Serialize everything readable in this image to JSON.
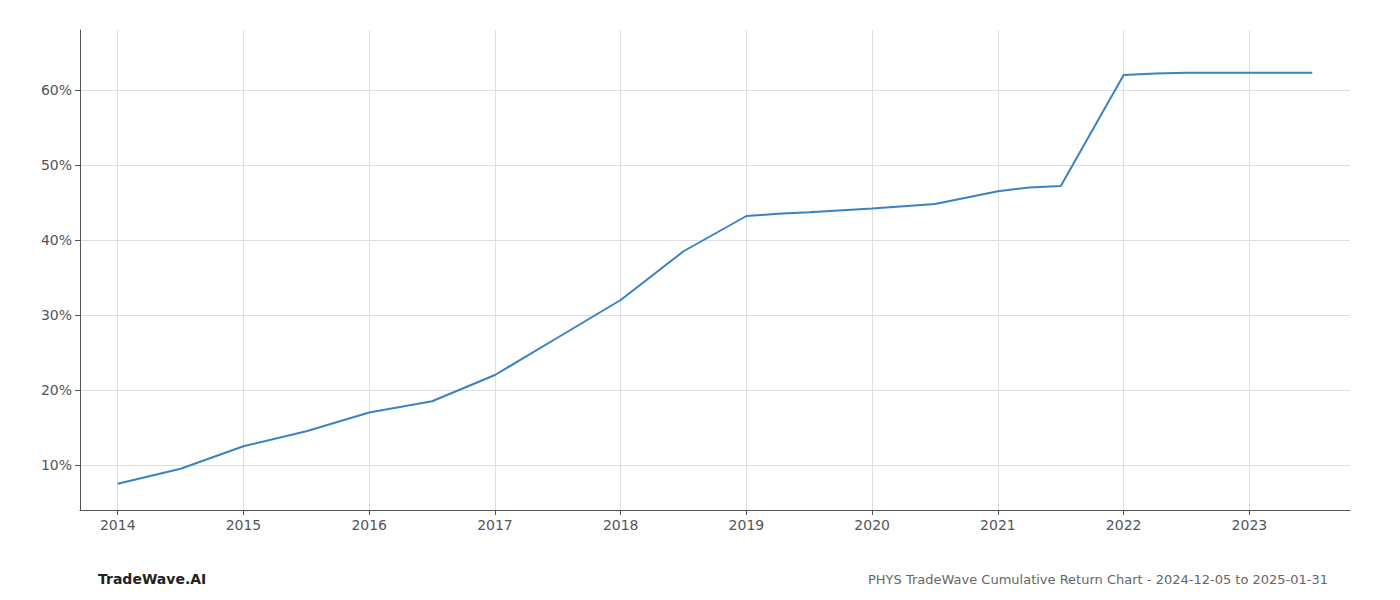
{
  "chart_data": {
    "type": "line",
    "x": [
      2014,
      2014.5,
      2015,
      2015.5,
      2016,
      2016.5,
      2017,
      2017.5,
      2018,
      2018.5,
      2019,
      2019.25,
      2019.5,
      2020,
      2020.5,
      2021,
      2021.25,
      2021.5,
      2022,
      2022.25,
      2022.5,
      2023,
      2023.5
    ],
    "values": [
      7.5,
      9.5,
      12.5,
      14.5,
      17.0,
      18.5,
      22.0,
      27.0,
      32.0,
      38.5,
      43.2,
      43.5,
      43.7,
      44.2,
      44.8,
      46.5,
      47.0,
      47.2,
      62.0,
      62.2,
      62.3,
      62.3,
      62.3
    ],
    "color": "#3a82c4",
    "xlim": [
      2013.7,
      2023.8
    ],
    "xticks": [
      2014,
      2015,
      2016,
      2017,
      2018,
      2019,
      2020,
      2021,
      2022,
      2023
    ],
    "ylim": [
      4,
      68
    ],
    "yticks": [
      {
        "value": 10,
        "label": "10%"
      },
      {
        "value": 20,
        "label": "20%"
      },
      {
        "value": 30,
        "label": "30%"
      },
      {
        "value": 40,
        "label": "40%"
      },
      {
        "value": 50,
        "label": "50%"
      },
      {
        "value": 60,
        "label": "60%"
      }
    ],
    "grid": true,
    "annotations": [
      "TradeWave.AI",
      "PHYS TradeWave Cumulative Return Chart - 2024-12-05 to 2025-01-31"
    ]
  }
}
